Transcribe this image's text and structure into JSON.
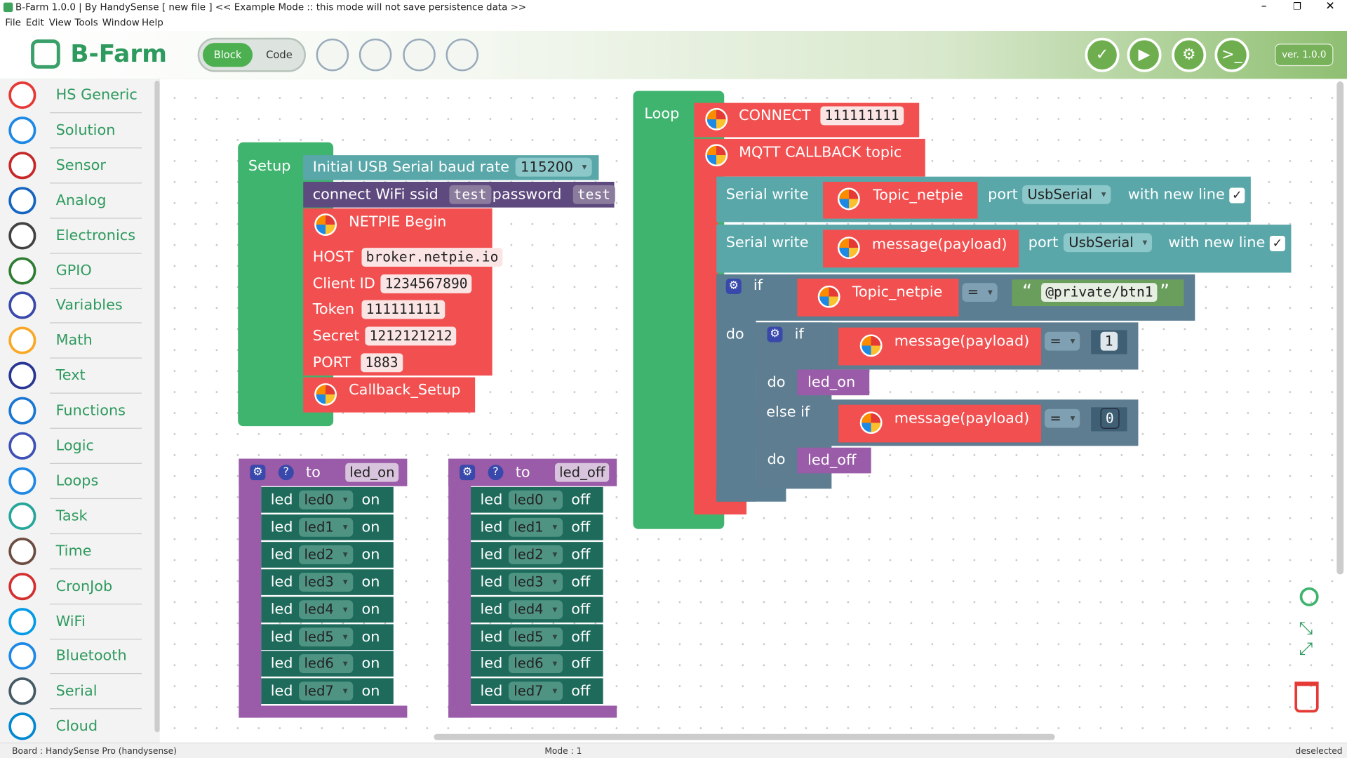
{
  "window": {
    "title": "B-Farm 1.0.0 | By HandySense [ new file ] << Example Mode :: this mode will not save persistence data >>"
  },
  "menu": [
    "File",
    "Edit",
    "View",
    "Tools",
    "Window",
    "Help"
  ],
  "toolbar": {
    "logo": "B-Farm",
    "tabs": [
      "Block",
      "Code"
    ],
    "version": "ver. 1.0.0"
  },
  "sidebar": {
    "categories": [
      "HS Generic",
      "Solution",
      "Sensor",
      "Analog",
      "Electronics",
      "GPIO",
      "Variables",
      "Math",
      "Text",
      "Functions",
      "Logic",
      "Loops",
      "Task",
      "Time",
      "CronJob",
      "WiFi",
      "Bluetooth",
      "Serial",
      "Cloud"
    ]
  },
  "setup": {
    "label": "Setup",
    "baud": {
      "text": "Initial USB Serial baud rate",
      "value": "115200"
    },
    "wifi": {
      "text": "connect WiFi ssid",
      "ssid": "test",
      "password_label": "password",
      "password": "test"
    },
    "netpie": {
      "title": "NETPIE Begin",
      "fields": [
        {
          "label": "HOST",
          "value": "broker.netpie.io"
        },
        {
          "label": "Client ID",
          "value": "1234567890"
        },
        {
          "label": "Token",
          "value": "111111111"
        },
        {
          "label": "Secret",
          "value": "1212121212"
        },
        {
          "label": "PORT",
          "value": "1883"
        }
      ]
    },
    "callback": "Callback_Setup"
  },
  "loop": {
    "label": "Loop",
    "connect": {
      "text": "CONNECT",
      "value": "111111111"
    },
    "callback": "MQTT CALLBACK topic",
    "serial": [
      {
        "text": "Serial write",
        "arg": "Topic_netpie",
        "port_label": "port",
        "port": "UsbSerial",
        "newline": "with new line"
      },
      {
        "text": "Serial write",
        "arg": "message(payload)",
        "port_label": "port",
        "port": "UsbSerial",
        "newline": "with new line"
      }
    ],
    "if_outer": {
      "if": "if",
      "arg": "Topic_netpie",
      "op": "=",
      "open_quote": "“",
      "value": "@private/btn1",
      "close_quote": "”",
      "do": "do"
    },
    "if_inner": {
      "if": "if",
      "arg": "message(payload)",
      "op": "=",
      "value": "1",
      "do": "do",
      "call": "led_on",
      "else_if": "else if",
      "arg2": "message(payload)",
      "op2": "=",
      "value2": "0",
      "do2": "do",
      "call2": "led_off"
    }
  },
  "functions": [
    {
      "to": "to",
      "name": "led_on",
      "rows": [
        [
          "led",
          "led0",
          "on"
        ],
        [
          "led",
          "led1",
          "on"
        ],
        [
          "led",
          "led2",
          "on"
        ],
        [
          "led",
          "led3",
          "on"
        ],
        [
          "led",
          "led4",
          "on"
        ],
        [
          "led",
          "led5",
          "on"
        ],
        [
          "led",
          "led6",
          "on"
        ],
        [
          "led",
          "led7",
          "on"
        ]
      ]
    },
    {
      "to": "to",
      "name": "led_off",
      "rows": [
        [
          "led",
          "led0",
          "off"
        ],
        [
          "led",
          "led1",
          "off"
        ],
        [
          "led",
          "led2",
          "off"
        ],
        [
          "led",
          "led3",
          "off"
        ],
        [
          "led",
          "led4",
          "off"
        ],
        [
          "led",
          "led5",
          "off"
        ],
        [
          "led",
          "led6",
          "off"
        ],
        [
          "led",
          "led7",
          "off"
        ]
      ]
    }
  ],
  "status": {
    "board": "Board : HandySense Pro (handysense)",
    "mode": "Mode : 1",
    "state": "deselected"
  }
}
